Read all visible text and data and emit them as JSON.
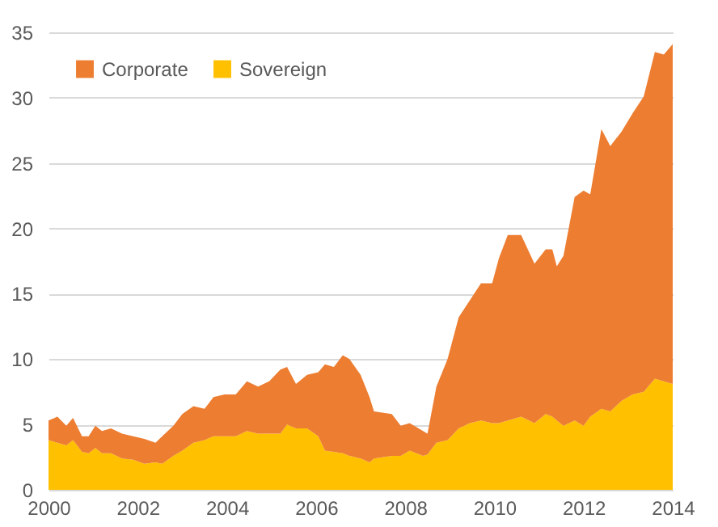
{
  "chart_data": {
    "type": "area",
    "stacked": true,
    "legend": "top left",
    "grid": "y",
    "x": [
      2000.0,
      2000.2,
      2000.4,
      2000.55,
      2000.75,
      2000.9,
      2001.05,
      2001.2,
      2001.4,
      2001.65,
      2001.9,
      2002.15,
      2002.4,
      2002.55,
      2002.8,
      2003.0,
      2003.25,
      2003.5,
      2003.7,
      2003.95,
      2004.2,
      2004.45,
      2004.7,
      2004.95,
      2005.2,
      2005.35,
      2005.55,
      2005.8,
      2006.05,
      2006.2,
      2006.4,
      2006.6,
      2006.75,
      2007.0,
      2007.2,
      2007.3,
      2007.7,
      2007.9,
      2008.1,
      2008.4,
      2008.5,
      2008.7,
      2008.95,
      2009.2,
      2009.45,
      2009.7,
      2009.95,
      2010.1,
      2010.3,
      2010.6,
      2010.9,
      2011.15,
      2011.3,
      2011.4,
      2011.55,
      2011.8,
      2012.0,
      2012.15,
      2012.4,
      2012.6,
      2012.85,
      2013.1,
      2013.35,
      2013.6,
      2013.8,
      2014.0
    ],
    "series": [
      {
        "name": "Sovereign",
        "color": "#ffc000",
        "values": [
          3.8,
          3.6,
          3.4,
          3.8,
          2.9,
          2.8,
          3.2,
          2.8,
          2.8,
          2.4,
          2.3,
          2.0,
          2.1,
          2.0,
          2.6,
          3.0,
          3.6,
          3.8,
          4.1,
          4.1,
          4.1,
          4.5,
          4.3,
          4.3,
          4.3,
          5.0,
          4.7,
          4.7,
          4.1,
          3.0,
          2.9,
          2.8,
          2.6,
          2.4,
          2.1,
          2.4,
          2.6,
          2.6,
          3.0,
          2.6,
          2.7,
          3.6,
          3.8,
          4.7,
          5.1,
          5.3,
          5.1,
          5.1,
          5.3,
          5.6,
          5.1,
          5.8,
          5.6,
          5.3,
          4.9,
          5.3,
          4.9,
          5.6,
          6.2,
          6.0,
          6.8,
          7.3,
          7.5,
          8.5,
          8.3,
          8.1
        ]
      },
      {
        "name": "Corporate",
        "color": "#ed7d31",
        "values": [
          1.5,
          2.0,
          1.5,
          1.7,
          1.2,
          1.3,
          1.7,
          1.7,
          1.9,
          1.9,
          1.8,
          1.9,
          1.5,
          2.1,
          2.3,
          2.8,
          2.8,
          2.4,
          3.0,
          3.2,
          3.2,
          3.8,
          3.6,
          4.0,
          4.9,
          4.4,
          3.4,
          4.1,
          4.9,
          6.6,
          6.5,
          7.5,
          7.4,
          6.4,
          5.0,
          3.6,
          3.2,
          2.3,
          2.1,
          1.9,
          1.6,
          4.3,
          6.2,
          8.5,
          9.4,
          10.5,
          10.7,
          12.6,
          14.2,
          13.9,
          12.2,
          12.6,
          12.8,
          11.8,
          13.0,
          17.1,
          18.0,
          17.0,
          21.4,
          20.3,
          20.6,
          21.5,
          22.6,
          25.0,
          25.0,
          26.0
        ]
      }
    ],
    "xlim": [
      2000,
      2014
    ],
    "xticks": [
      2000,
      2002,
      2004,
      2006,
      2008,
      2010,
      2012,
      2014
    ],
    "ylim": [
      0,
      35
    ],
    "yticks": [
      0,
      5,
      10,
      15,
      20,
      25,
      30,
      35
    ]
  }
}
